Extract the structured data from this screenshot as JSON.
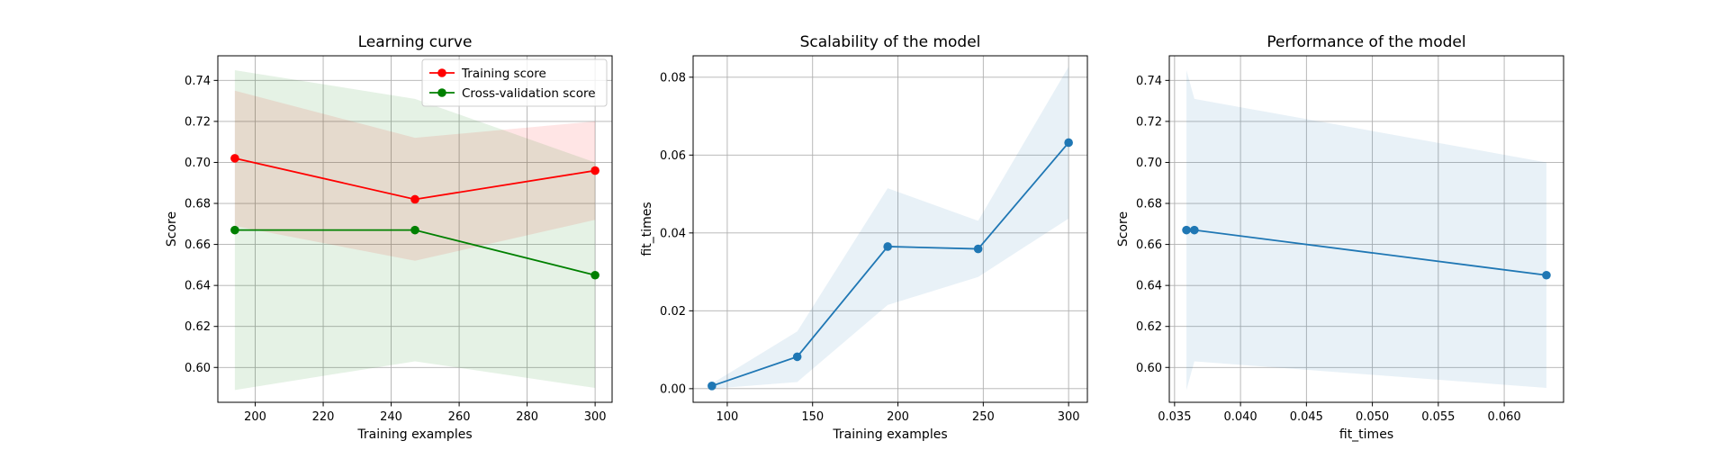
{
  "chart_data": [
    {
      "type": "line",
      "title": "Learning curve",
      "xlabel": "Training examples",
      "ylabel": "Score",
      "xlim": [
        189,
        305
      ],
      "ylim": [
        0.583,
        0.752
      ],
      "xticks": [
        200,
        220,
        240,
        260,
        280,
        300
      ],
      "yticks": [
        0.6,
        0.62,
        0.64,
        0.66,
        0.68,
        0.7,
        0.72,
        0.74
      ],
      "ytick_decimals": 2,
      "grid": true,
      "legend": "top-right",
      "x": [
        194,
        247,
        300
      ],
      "series": [
        {
          "name": "Training score",
          "color": "#ff0000",
          "fill_color": "#ff0000",
          "values": [
            0.702,
            0.682,
            0.696
          ],
          "band_low": [
            0.669,
            0.652,
            0.672
          ],
          "band_high": [
            0.735,
            0.712,
            0.72
          ]
        },
        {
          "name": "Cross-validation score",
          "color": "#008000",
          "fill_color": "#008000",
          "values": [
            0.667,
            0.667,
            0.645
          ],
          "band_low": [
            0.589,
            0.603,
            0.59
          ],
          "band_high": [
            0.745,
            0.731,
            0.7
          ]
        }
      ]
    },
    {
      "type": "line",
      "title": "Scalability of the model",
      "xlabel": "Training examples",
      "ylabel": "fit_times",
      "xlim": [
        80,
        311
      ],
      "ylim": [
        -0.0035,
        0.0855
      ],
      "xticks": [
        100,
        150,
        200,
        250,
        300
      ],
      "yticks": [
        0.0,
        0.02,
        0.04,
        0.06,
        0.08
      ],
      "ytick_decimals": 2,
      "grid": true,
      "x": [
        91,
        141,
        194,
        247,
        300
      ],
      "series": [
        {
          "color": "#1f77b4",
          "fill_color": "#1f77b4",
          "values": [
            0.0007,
            0.0082,
            0.0365,
            0.0359,
            0.0632
          ],
          "band_low": [
            0.0,
            0.0017,
            0.0215,
            0.0287,
            0.0437
          ],
          "band_high": [
            0.0013,
            0.0147,
            0.0515,
            0.0431,
            0.0827
          ]
        }
      ]
    },
    {
      "type": "line",
      "title": "Performance of the model",
      "xlabel": "fit_times",
      "ylabel": "Score",
      "xlim": [
        0.0346,
        0.0645
      ],
      "ylim": [
        0.583,
        0.752
      ],
      "xticks": [
        0.035,
        0.04,
        0.045,
        0.05,
        0.055,
        0.06
      ],
      "xtick_decimals": 3,
      "yticks": [
        0.6,
        0.62,
        0.64,
        0.66,
        0.68,
        0.7,
        0.72,
        0.74
      ],
      "ytick_decimals": 2,
      "grid": true,
      "x": [
        0.0359,
        0.0365,
        0.0632
      ],
      "series": [
        {
          "color": "#1f77b4",
          "fill_color": "#1f77b4",
          "values": [
            0.667,
            0.667,
            0.645
          ],
          "band_low": [
            0.589,
            0.603,
            0.59
          ],
          "band_high": [
            0.745,
            0.731,
            0.7
          ]
        }
      ]
    }
  ]
}
